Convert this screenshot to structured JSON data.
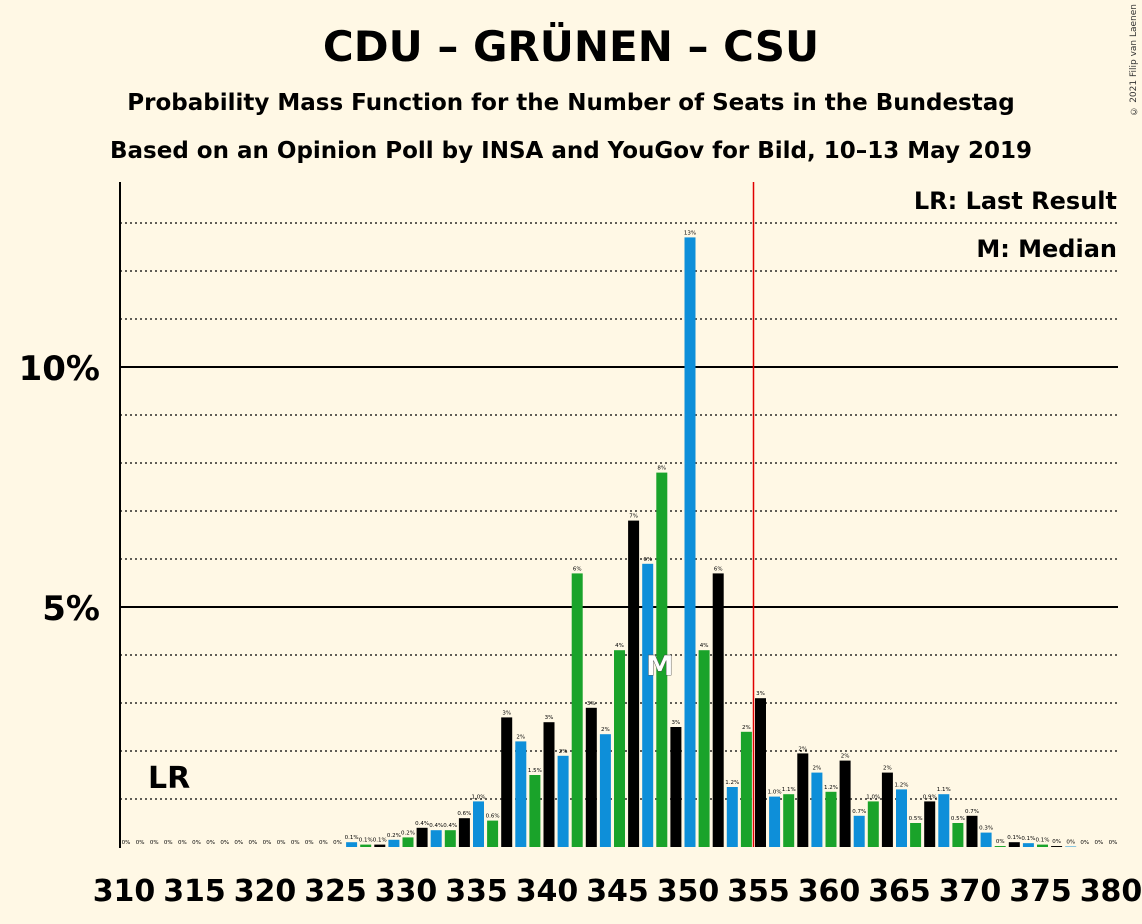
{
  "title": "CDU – GRÜNEN – CSU",
  "subtitle": "Probability Mass Function for the Number of Seats in the Bundestag",
  "subtitle2": "Based on an Opinion Poll by INSA and YouGov for Bild, 10–13 May 2019",
  "copyright": "© 2021 Filip van Laenen",
  "legend": {
    "lr": "LR: Last Result",
    "m": "M: Median"
  },
  "colors": {
    "black": "#000000",
    "green": "#1AA32A",
    "blue": "#0E8FD9",
    "majority": "#E00000",
    "background": "#FFF8E5"
  },
  "chart_data": {
    "type": "bar",
    "x_start": 310,
    "values": [
      0,
      0,
      0,
      0,
      0,
      0,
      0,
      0,
      0,
      0,
      0,
      0,
      0,
      0,
      0,
      0,
      0.1,
      0.05,
      0.05,
      0.15,
      0.2,
      0.4,
      0.35,
      0.35,
      0.6,
      0.95,
      0.55,
      2.7,
      2.2,
      1.5,
      2.6,
      1.9,
      5.7,
      2.9,
      2.35,
      4.1,
      6.8,
      5.9,
      7.8,
      2.5,
      12.7,
      4.1,
      5.7,
      1.25,
      2.4,
      3.1,
      1.05,
      1.1,
      1.95,
      1.55,
      1.15,
      1.8,
      0.65,
      0.95,
      1.55,
      1.2,
      0.5,
      0.95,
      1.1,
      0.5,
      0.65,
      0.3,
      0.02,
      0.1,
      0.08,
      0.05,
      0.02,
      0.01,
      0,
      0,
      0
    ],
    "labels": [
      "0%",
      "0%",
      "0%",
      "0%",
      "0%",
      "0%",
      "0%",
      "0%",
      "0%",
      "0%",
      "0%",
      "0%",
      "0%",
      "0%",
      "0%",
      "0%",
      "0.1%",
      "0.1%",
      "0.1%",
      "0.2%",
      "0.2%",
      "0.4%",
      "0.4%",
      "0.4%",
      "0.6%",
      "1.0%",
      "0.6%",
      "3%",
      "2%",
      "1.5%",
      "3%",
      "2%",
      "6%",
      "3%",
      "2%",
      "4%",
      "7%",
      "6%",
      "8%",
      "3%",
      "13%",
      "4%",
      "6%",
      "1.2%",
      "2%",
      "3%",
      "1.0%",
      "1.1%",
      "2%",
      "2%",
      "1.2%",
      "2%",
      "0.7%",
      "1.0%",
      "2%",
      "1.2%",
      "0.5%",
      "0.9%",
      "1.1%",
      "0.5%",
      "0.7%",
      "0.3%",
      "0%",
      "0.1%",
      "0.1%",
      "0.1%",
      "0%",
      "0%",
      "0%",
      "0%",
      "0%"
    ],
    "colors": [
      "black",
      "blue",
      "green"
    ],
    "x_ticks": [
      310,
      315,
      320,
      325,
      330,
      335,
      340,
      345,
      350,
      355,
      360,
      365,
      370,
      375,
      380
    ],
    "y_ticks": [
      "5%",
      "10%"
    ],
    "y_tick_values": [
      5,
      10
    ],
    "ylim": [
      0,
      14
    ],
    "majority_seat": 355,
    "median_seat": 348,
    "median_label": "M",
    "last_result_label": "LR",
    "last_result_seat": 311
  }
}
